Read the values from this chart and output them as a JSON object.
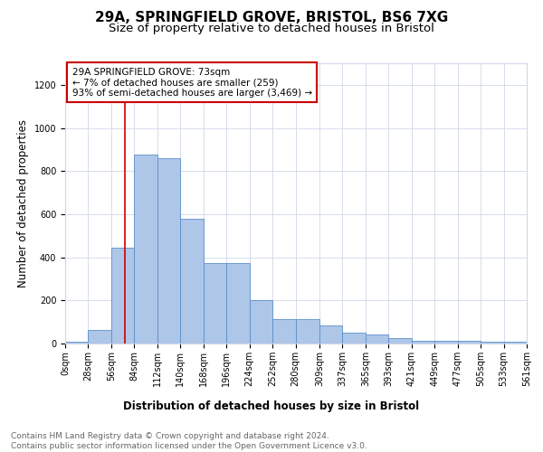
{
  "title_line1": "29A, SPRINGFIELD GROVE, BRISTOL, BS6 7XG",
  "title_line2": "Size of property relative to detached houses in Bristol",
  "xlabel": "Distribution of detached houses by size in Bristol",
  "ylabel": "Number of detached properties",
  "bar_color": "#aec6e8",
  "bar_edge_color": "#5b8fc9",
  "annotation_box_color": "#cc0000",
  "annotation_text": "29A SPRINGFIELD GROVE: 73sqm\n← 7% of detached houses are smaller (259)\n93% of semi-detached houses are larger (3,469) →",
  "vline_x": 73,
  "vline_color": "#cc0000",
  "footnote": "Contains HM Land Registry data © Crown copyright and database right 2024.\nContains public sector information licensed under the Open Government Licence v3.0.",
  "bin_edges": [
    0,
    28,
    56,
    84,
    112,
    140,
    168,
    196,
    224,
    252,
    280,
    309,
    337,
    365,
    393,
    421,
    449,
    477,
    505,
    533,
    561
  ],
  "bar_heights": [
    10,
    65,
    445,
    875,
    860,
    580,
    375,
    375,
    200,
    115,
    115,
    82,
    50,
    42,
    25,
    13,
    12,
    12,
    8,
    8
  ],
  "xtick_labels": [
    "0sqm",
    "28sqm",
    "56sqm",
    "84sqm",
    "112sqm",
    "140sqm",
    "168sqm",
    "196sqm",
    "224sqm",
    "252sqm",
    "280sqm",
    "309sqm",
    "337sqm",
    "365sqm",
    "393sqm",
    "421sqm",
    "449sqm",
    "477sqm",
    "505sqm",
    "533sqm",
    "561sqm"
  ],
  "ylim": [
    0,
    1300
  ],
  "yticks": [
    0,
    200,
    400,
    600,
    800,
    1000,
    1200
  ],
  "background_color": "#ffffff",
  "grid_color": "#d0d8e8",
  "title_fontsize": 11,
  "subtitle_fontsize": 9.5,
  "axis_label_fontsize": 8.5,
  "tick_fontsize": 7,
  "annot_fontsize": 7.5,
  "footnote_fontsize": 6.5
}
